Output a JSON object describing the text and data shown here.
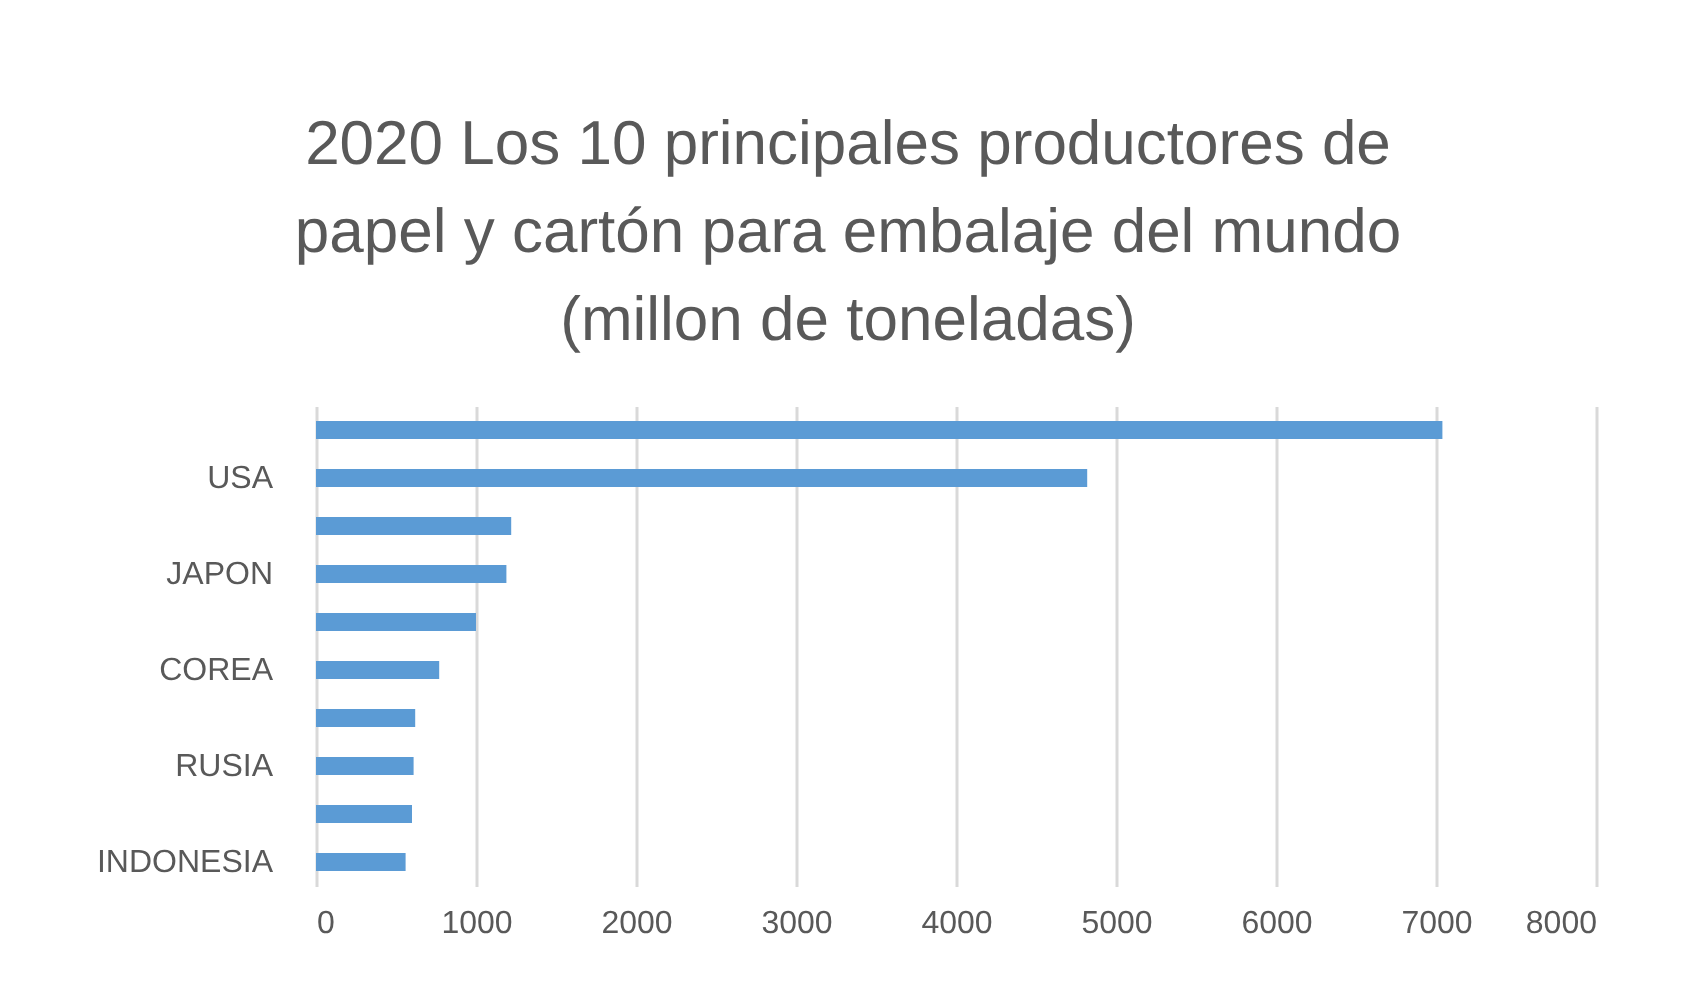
{
  "chart_data": {
    "type": "bar",
    "orientation": "horizontal",
    "title": "2020 Los 10 principales productores de papel y cartón para embalaje del mundo (millon de toneladas)",
    "categories": [
      null,
      "USA",
      null,
      "JAPON",
      null,
      "COREA",
      null,
      "RUSIA",
      null,
      "INDONESIA"
    ],
    "values": [
      7040,
      4820,
      1220,
      1190,
      1000,
      770,
      620,
      610,
      600,
      560
    ],
    "color": "#5b9bd5",
    "xlim": [
      0,
      8000
    ],
    "xticks": [
      0,
      1000,
      2000,
      3000,
      4000,
      5000,
      6000,
      7000,
      8000
    ],
    "grid": "x"
  }
}
